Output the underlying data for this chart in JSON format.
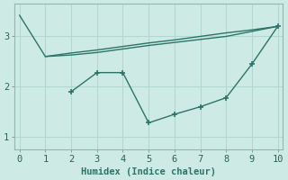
{
  "line1": {
    "x": [
      0,
      1,
      2,
      3,
      4,
      5,
      6,
      7,
      8,
      9,
      10
    ],
    "y": [
      3.42,
      2.6,
      2.63,
      2.68,
      2.75,
      2.82,
      2.88,
      2.94,
      3.0,
      3.1,
      3.2
    ],
    "linewidth": 1.0,
    "marker": null
  },
  "line2": {
    "x": [
      1,
      2,
      3,
      4,
      5,
      6,
      7,
      8,
      9,
      10
    ],
    "y": [
      2.6,
      2.67,
      2.73,
      2.8,
      2.87,
      2.93,
      3.0,
      3.07,
      3.13,
      3.2
    ],
    "linewidth": 1.0,
    "marker": null
  },
  "line3": {
    "x": [
      2,
      3,
      4,
      5,
      6,
      7,
      8,
      9,
      10
    ],
    "y": [
      1.9,
      2.28,
      2.28,
      1.28,
      1.45,
      1.6,
      1.78,
      2.45,
      3.2
    ],
    "linewidth": 1.0,
    "marker": "+"
  },
  "xlabel": "Humidex (Indice chaleur)",
  "xlim": [
    -0.2,
    10.2
  ],
  "ylim": [
    0.75,
    3.65
  ],
  "yticks": [
    1,
    2,
    3
  ],
  "xticks": [
    0,
    1,
    2,
    3,
    4,
    5,
    6,
    7,
    8,
    9,
    10
  ],
  "background_color": "#ceeae5",
  "grid_color": "#b0d8d2",
  "line_color": "#2a7568",
  "xlabel_fontsize": 7.5,
  "tick_fontsize": 7.5,
  "xlabel_color": "#2a7568"
}
